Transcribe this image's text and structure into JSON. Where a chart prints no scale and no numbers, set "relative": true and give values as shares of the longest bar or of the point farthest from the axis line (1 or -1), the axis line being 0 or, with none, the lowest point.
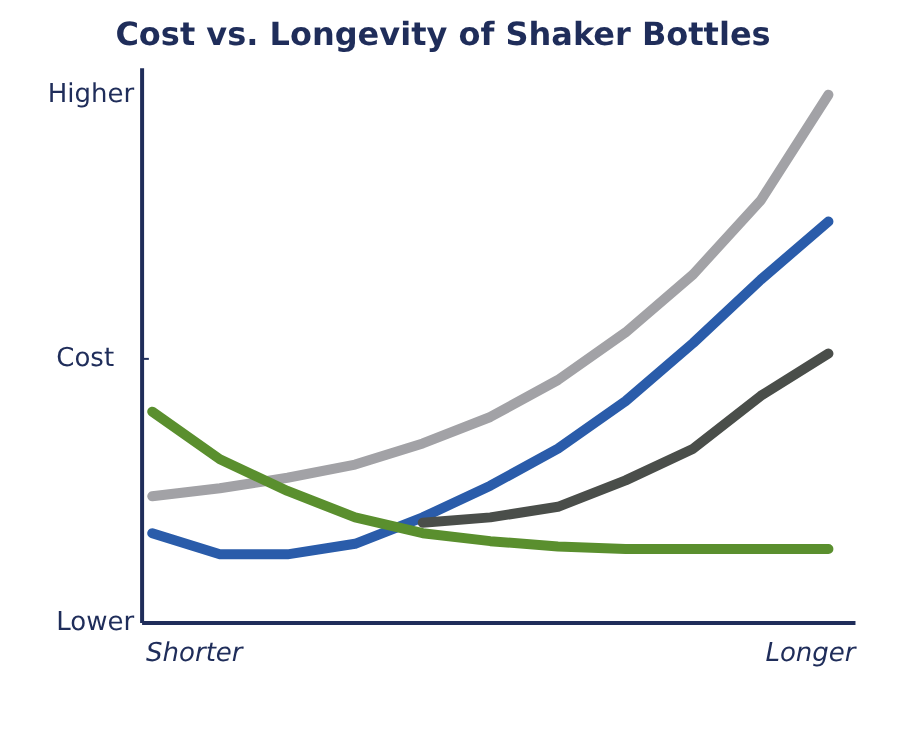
{
  "chart_data": {
    "type": "line",
    "title": "Cost vs. Longevity of Shaker Bottles",
    "ylabel": "Cost",
    "relative": true,
    "annotations": [
      "Higher",
      "Lower",
      "Shorter",
      "Longer"
    ],
    "categories": [
      null,
      null,
      null,
      null,
      null,
      null,
      null,
      null,
      null,
      null,
      null
    ],
    "marker": "none",
    "line_style": "solid",
    "series": [
      {
        "color": "#a2a2a6",
        "values": [
          0.24,
          0.255,
          0.275,
          0.3,
          0.34,
          0.39,
          0.46,
          0.55,
          0.66,
          0.8,
          1.0
        ]
      },
      {
        "color": "#2a5caa",
        "values": [
          0.17,
          0.13,
          0.13,
          0.15,
          0.2,
          0.26,
          0.33,
          0.42,
          0.53,
          0.65,
          0.76
        ]
      },
      {
        "color": "#4a4e4a",
        "values": [
          null,
          null,
          null,
          null,
          0.19,
          0.2,
          0.22,
          0.27,
          0.33,
          0.43,
          0.51
        ]
      },
      {
        "color": "#5a8f2e",
        "values": [
          0.4,
          0.31,
          0.25,
          0.2,
          0.17,
          0.155,
          0.145,
          0.14,
          0.14,
          0.14,
          0.14
        ]
      }
    ]
  }
}
